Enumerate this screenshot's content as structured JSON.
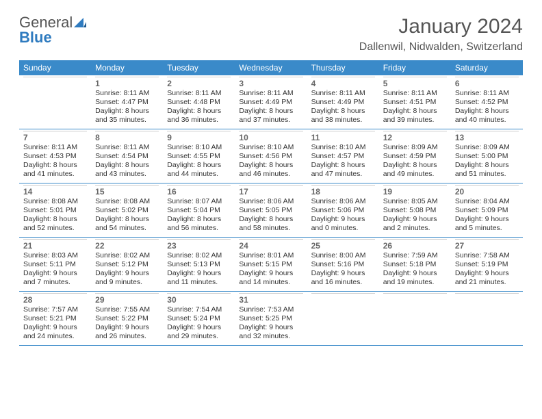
{
  "branding": {
    "word1": "General",
    "word2": "Blue",
    "logo_color": "#2f7bbf"
  },
  "title": "January 2024",
  "subtitle": "Dallenwil, Nidwalden, Switzerland",
  "colors": {
    "header_bg": "#3a8ac9",
    "header_text": "#ffffff",
    "week_border": "#3a8ac9",
    "day_sep": "#cfcfcf",
    "body_text": "#333333",
    "title_text": "#555555"
  },
  "day_headers": [
    "Sunday",
    "Monday",
    "Tuesday",
    "Wednesday",
    "Thursday",
    "Friday",
    "Saturday"
  ],
  "weeks": [
    [
      {
        "num": "",
        "sunrise": "",
        "sunset": "",
        "daylight": ""
      },
      {
        "num": "1",
        "sunrise": "Sunrise: 8:11 AM",
        "sunset": "Sunset: 4:47 PM",
        "daylight": "Daylight: 8 hours and 35 minutes."
      },
      {
        "num": "2",
        "sunrise": "Sunrise: 8:11 AM",
        "sunset": "Sunset: 4:48 PM",
        "daylight": "Daylight: 8 hours and 36 minutes."
      },
      {
        "num": "3",
        "sunrise": "Sunrise: 8:11 AM",
        "sunset": "Sunset: 4:49 PM",
        "daylight": "Daylight: 8 hours and 37 minutes."
      },
      {
        "num": "4",
        "sunrise": "Sunrise: 8:11 AM",
        "sunset": "Sunset: 4:49 PM",
        "daylight": "Daylight: 8 hours and 38 minutes."
      },
      {
        "num": "5",
        "sunrise": "Sunrise: 8:11 AM",
        "sunset": "Sunset: 4:51 PM",
        "daylight": "Daylight: 8 hours and 39 minutes."
      },
      {
        "num": "6",
        "sunrise": "Sunrise: 8:11 AM",
        "sunset": "Sunset: 4:52 PM",
        "daylight": "Daylight: 8 hours and 40 minutes."
      }
    ],
    [
      {
        "num": "7",
        "sunrise": "Sunrise: 8:11 AM",
        "sunset": "Sunset: 4:53 PM",
        "daylight": "Daylight: 8 hours and 41 minutes."
      },
      {
        "num": "8",
        "sunrise": "Sunrise: 8:11 AM",
        "sunset": "Sunset: 4:54 PM",
        "daylight": "Daylight: 8 hours and 43 minutes."
      },
      {
        "num": "9",
        "sunrise": "Sunrise: 8:10 AM",
        "sunset": "Sunset: 4:55 PM",
        "daylight": "Daylight: 8 hours and 44 minutes."
      },
      {
        "num": "10",
        "sunrise": "Sunrise: 8:10 AM",
        "sunset": "Sunset: 4:56 PM",
        "daylight": "Daylight: 8 hours and 46 minutes."
      },
      {
        "num": "11",
        "sunrise": "Sunrise: 8:10 AM",
        "sunset": "Sunset: 4:57 PM",
        "daylight": "Daylight: 8 hours and 47 minutes."
      },
      {
        "num": "12",
        "sunrise": "Sunrise: 8:09 AM",
        "sunset": "Sunset: 4:59 PM",
        "daylight": "Daylight: 8 hours and 49 minutes."
      },
      {
        "num": "13",
        "sunrise": "Sunrise: 8:09 AM",
        "sunset": "Sunset: 5:00 PM",
        "daylight": "Daylight: 8 hours and 51 minutes."
      }
    ],
    [
      {
        "num": "14",
        "sunrise": "Sunrise: 8:08 AM",
        "sunset": "Sunset: 5:01 PM",
        "daylight": "Daylight: 8 hours and 52 minutes."
      },
      {
        "num": "15",
        "sunrise": "Sunrise: 8:08 AM",
        "sunset": "Sunset: 5:02 PM",
        "daylight": "Daylight: 8 hours and 54 minutes."
      },
      {
        "num": "16",
        "sunrise": "Sunrise: 8:07 AM",
        "sunset": "Sunset: 5:04 PM",
        "daylight": "Daylight: 8 hours and 56 minutes."
      },
      {
        "num": "17",
        "sunrise": "Sunrise: 8:06 AM",
        "sunset": "Sunset: 5:05 PM",
        "daylight": "Daylight: 8 hours and 58 minutes."
      },
      {
        "num": "18",
        "sunrise": "Sunrise: 8:06 AM",
        "sunset": "Sunset: 5:06 PM",
        "daylight": "Daylight: 9 hours and 0 minutes."
      },
      {
        "num": "19",
        "sunrise": "Sunrise: 8:05 AM",
        "sunset": "Sunset: 5:08 PM",
        "daylight": "Daylight: 9 hours and 2 minutes."
      },
      {
        "num": "20",
        "sunrise": "Sunrise: 8:04 AM",
        "sunset": "Sunset: 5:09 PM",
        "daylight": "Daylight: 9 hours and 5 minutes."
      }
    ],
    [
      {
        "num": "21",
        "sunrise": "Sunrise: 8:03 AM",
        "sunset": "Sunset: 5:11 PM",
        "daylight": "Daylight: 9 hours and 7 minutes."
      },
      {
        "num": "22",
        "sunrise": "Sunrise: 8:02 AM",
        "sunset": "Sunset: 5:12 PM",
        "daylight": "Daylight: 9 hours and 9 minutes."
      },
      {
        "num": "23",
        "sunrise": "Sunrise: 8:02 AM",
        "sunset": "Sunset: 5:13 PM",
        "daylight": "Daylight: 9 hours and 11 minutes."
      },
      {
        "num": "24",
        "sunrise": "Sunrise: 8:01 AM",
        "sunset": "Sunset: 5:15 PM",
        "daylight": "Daylight: 9 hours and 14 minutes."
      },
      {
        "num": "25",
        "sunrise": "Sunrise: 8:00 AM",
        "sunset": "Sunset: 5:16 PM",
        "daylight": "Daylight: 9 hours and 16 minutes."
      },
      {
        "num": "26",
        "sunrise": "Sunrise: 7:59 AM",
        "sunset": "Sunset: 5:18 PM",
        "daylight": "Daylight: 9 hours and 19 minutes."
      },
      {
        "num": "27",
        "sunrise": "Sunrise: 7:58 AM",
        "sunset": "Sunset: 5:19 PM",
        "daylight": "Daylight: 9 hours and 21 minutes."
      }
    ],
    [
      {
        "num": "28",
        "sunrise": "Sunrise: 7:57 AM",
        "sunset": "Sunset: 5:21 PM",
        "daylight": "Daylight: 9 hours and 24 minutes."
      },
      {
        "num": "29",
        "sunrise": "Sunrise: 7:55 AM",
        "sunset": "Sunset: 5:22 PM",
        "daylight": "Daylight: 9 hours and 26 minutes."
      },
      {
        "num": "30",
        "sunrise": "Sunrise: 7:54 AM",
        "sunset": "Sunset: 5:24 PM",
        "daylight": "Daylight: 9 hours and 29 minutes."
      },
      {
        "num": "31",
        "sunrise": "Sunrise: 7:53 AM",
        "sunset": "Sunset: 5:25 PM",
        "daylight": "Daylight: 9 hours and 32 minutes."
      },
      {
        "num": "",
        "sunrise": "",
        "sunset": "",
        "daylight": ""
      },
      {
        "num": "",
        "sunrise": "",
        "sunset": "",
        "daylight": ""
      },
      {
        "num": "",
        "sunrise": "",
        "sunset": "",
        "daylight": ""
      }
    ]
  ]
}
